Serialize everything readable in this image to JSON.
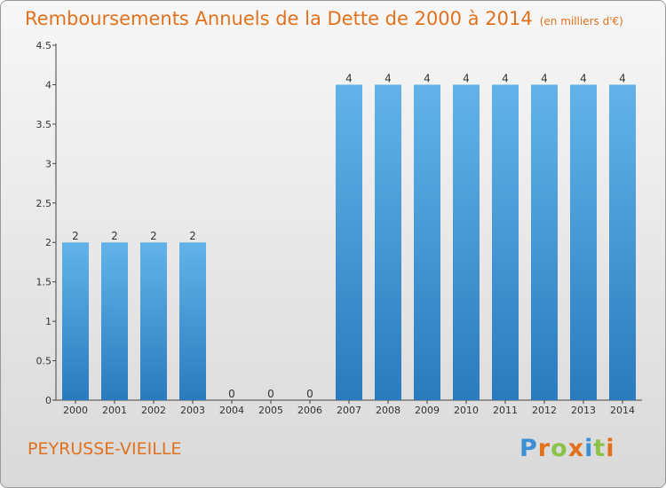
{
  "chart_data": {
    "type": "bar",
    "title": "Remboursements Annuels de la Dette de 2000 à 2014",
    "unit": "(en milliers d'€)",
    "categories": [
      "2000",
      "2001",
      "2002",
      "2003",
      "2004",
      "2005",
      "2006",
      "2007",
      "2008",
      "2009",
      "2010",
      "2011",
      "2012",
      "2013",
      "2014"
    ],
    "values": [
      2,
      2,
      2,
      2,
      0,
      0,
      0,
      4,
      4,
      4,
      4,
      4,
      4,
      4,
      4
    ],
    "y_ticks": [
      "0",
      "0.5",
      "1",
      "1.5",
      "2",
      "2.5",
      "3",
      "3.5",
      "4",
      "4.5"
    ],
    "ylim": [
      0,
      4.5
    ],
    "xlabel": "",
    "ylabel": "",
    "grid": false
  },
  "footer": {
    "place": "PEYRUSSE-VIEILLE"
  },
  "logo": {
    "letters": [
      "P",
      "r",
      "o",
      "x",
      "i",
      "t",
      "i"
    ],
    "colors": [
      "#3a8fd6",
      "#e2711d",
      "#8bc34a",
      "#e2711d",
      "#3a8fd6",
      "#8bc34a",
      "#e2711d"
    ]
  },
  "colors": {
    "bar_light": "#63b3ea",
    "bar_dark": "#2a7bbd",
    "title": "#e2711d"
  }
}
